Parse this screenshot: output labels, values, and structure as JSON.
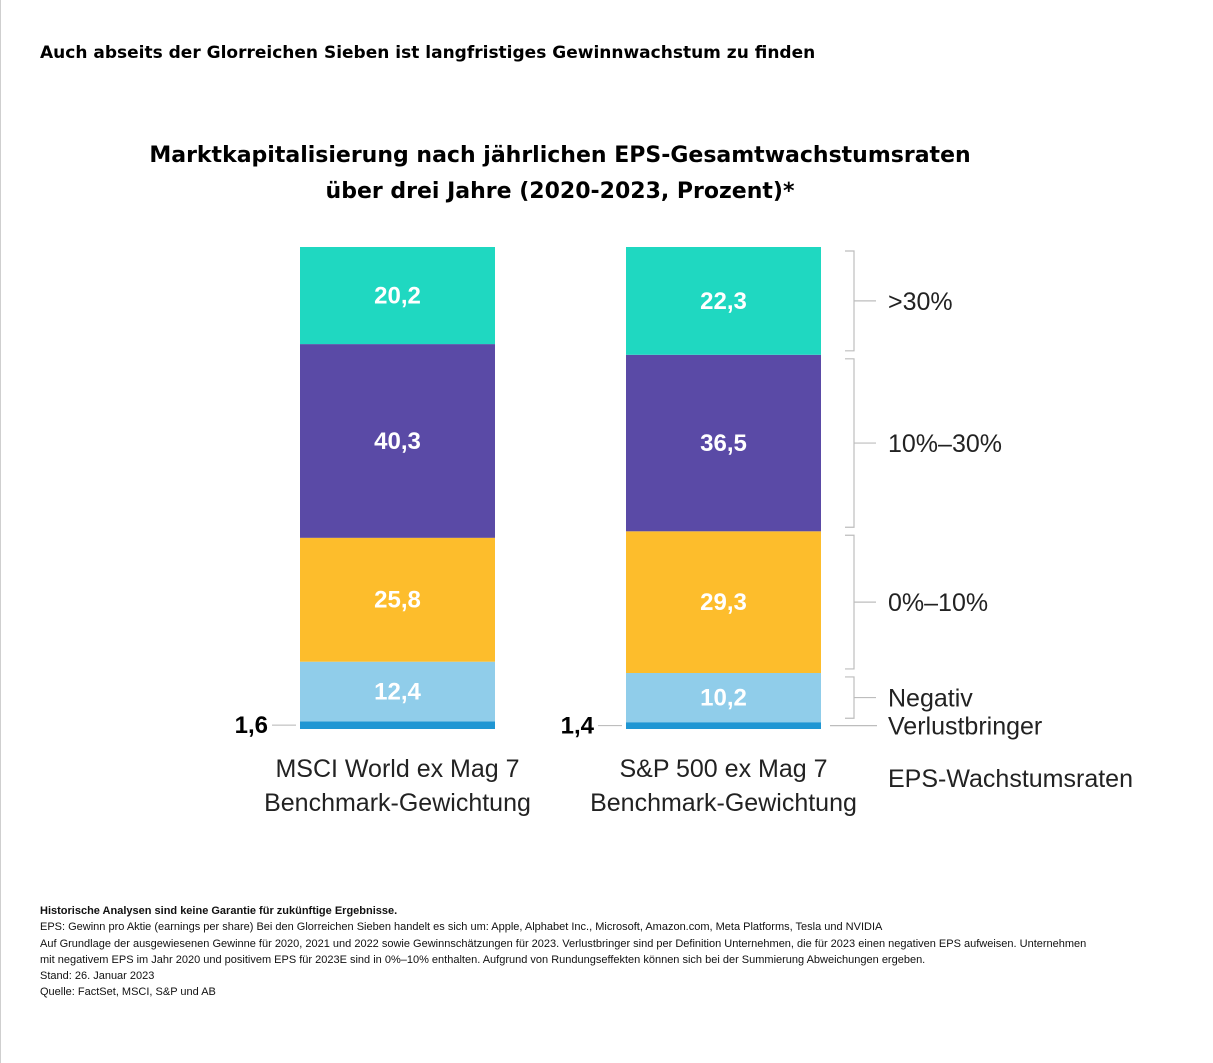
{
  "headline": "Auch abseits der Glorreichen Sieben ist langfristiges Gewinnwachstum zu finden",
  "chart_data": {
    "type": "bar",
    "stacked": true,
    "title_line1": "Marktkapitalisierung nach jährlichen EPS-Gesamtwachstumsraten",
    "title_line2": "über drei Jahre (2020-2023, Prozent)*",
    "legend_title": "EPS-Wachstumsraten",
    "bars": [
      {
        "name_line1": "MSCI World ex Mag 7",
        "name_line2": "Benchmark-Gewichtung",
        "values": [
          1.6,
          12.4,
          25.8,
          40.3,
          20.2
        ],
        "labels": [
          "1,6",
          "12,4",
          "25,8",
          "40,3",
          "20,2"
        ]
      },
      {
        "name_line1": "S&P 500 ex Mag 7",
        "name_line2": "Benchmark-Gewichtung",
        "values": [
          1.4,
          10.2,
          29.3,
          36.5,
          22.3
        ],
        "labels": [
          "1,4",
          "10,2",
          "29,3",
          "36,5",
          "22,3"
        ]
      }
    ],
    "segments": [
      {
        "name": "Verlustbringer",
        "color": "#1f96d3"
      },
      {
        "name": "Negativ",
        "color": "#90cdea"
      },
      {
        "name": "0%–10%",
        "color": "#fdbd2c"
      },
      {
        "name": "10%–30%",
        "color": "#5a4aa6"
      },
      {
        "name": ">30%",
        "color": "#1fd8c1"
      }
    ],
    "ylim": [
      0,
      100
    ]
  },
  "footnotes": {
    "disclaimer": "Historische Analysen sind keine Garantie für zukünftige Ergebnisse.",
    "line1": "EPS: Gewinn pro Aktie (earnings per share) Bei den Glorreichen Sieben handelt es sich um: Apple, Alphabet Inc., Microsoft, Amazon.com, Meta Platforms, Tesla und NVIDIA",
    "line2": "Auf Grundlage der ausgewiesenen Gewinne für 2020, 2021 und 2022 sowie Gewinnschätzungen für 2023. Verlustbringer sind per Definition Unternehmen, die für 2023 einen negativen EPS aufweisen. Unternehmen",
    "line3": "mit negativem EPS im Jahr 2020 und positivem EPS für 2023E sind in 0%–10% enthalten. Aufgrund von Rundungseffekten können sich bei der Summierung Abweichungen ergeben.",
    "line4": "Stand: 26. Januar 2023",
    "line5": "Quelle: FactSet, MSCI, S&P und AB"
  }
}
